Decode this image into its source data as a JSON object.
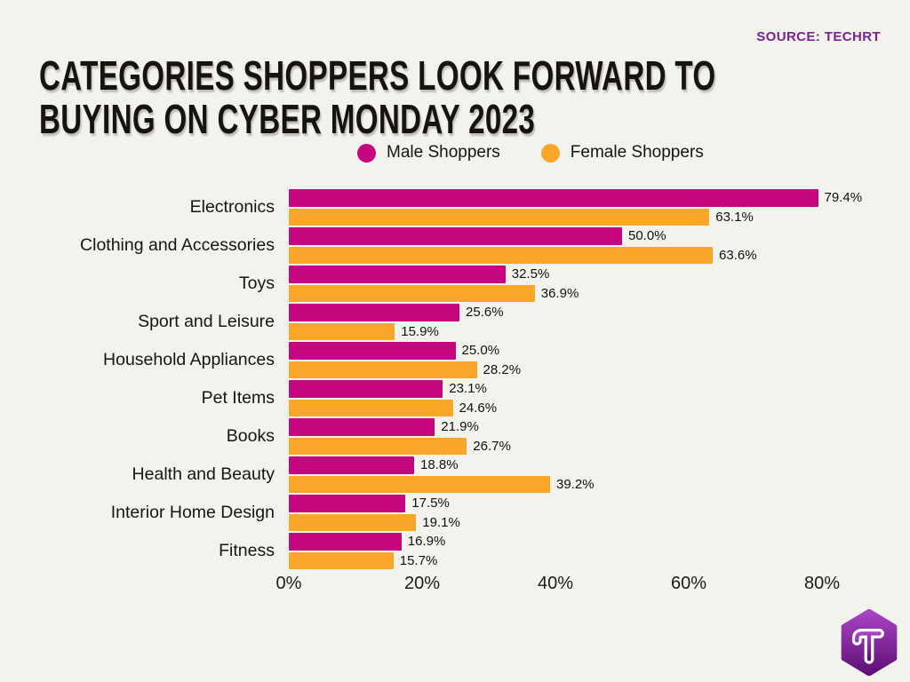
{
  "page": {
    "background_color": "#f3f3ed",
    "text_color": "#161616"
  },
  "header": {
    "title_line1": "CATEGORIES SHOPPERS LOOK FORWARD TO",
    "title_line2": "BUYING ON CYBER MONDAY 2023",
    "source_label": "SOURCE: TECHRT",
    "source_color": "#7a2191"
  },
  "chart_data": {
    "type": "bar",
    "orientation": "horizontal",
    "title": "Categories shoppers look forward to buying on Cyber Monday 2023",
    "categories": [
      "Electronics",
      "Clothing and Accessories",
      "Toys",
      "Sport and Leisure",
      "Household Appliances",
      "Pet Items",
      "Books",
      "Health and Beauty",
      "Interior Home Design",
      "Fitness"
    ],
    "series": [
      {
        "name": "Male Shoppers",
        "color": "#c5067f",
        "values": [
          79.4,
          50.0,
          32.5,
          25.6,
          25.0,
          23.1,
          21.9,
          18.8,
          17.5,
          16.9
        ]
      },
      {
        "name": "Female Shoppers",
        "color": "#f9a62b",
        "values": [
          63.1,
          63.6,
          36.9,
          15.9,
          28.2,
          24.6,
          26.7,
          39.2,
          19.1,
          15.7
        ]
      }
    ],
    "value_suffix": "%",
    "x_ticks": [
      "0%",
      "20%",
      "40%",
      "60%",
      "80%"
    ],
    "xlim": [
      0,
      85
    ],
    "grid": false,
    "legend_position": "top"
  },
  "logo": {
    "letter": "T",
    "gradient_top": "#a944c6",
    "gradient_bottom": "#5e1075"
  }
}
